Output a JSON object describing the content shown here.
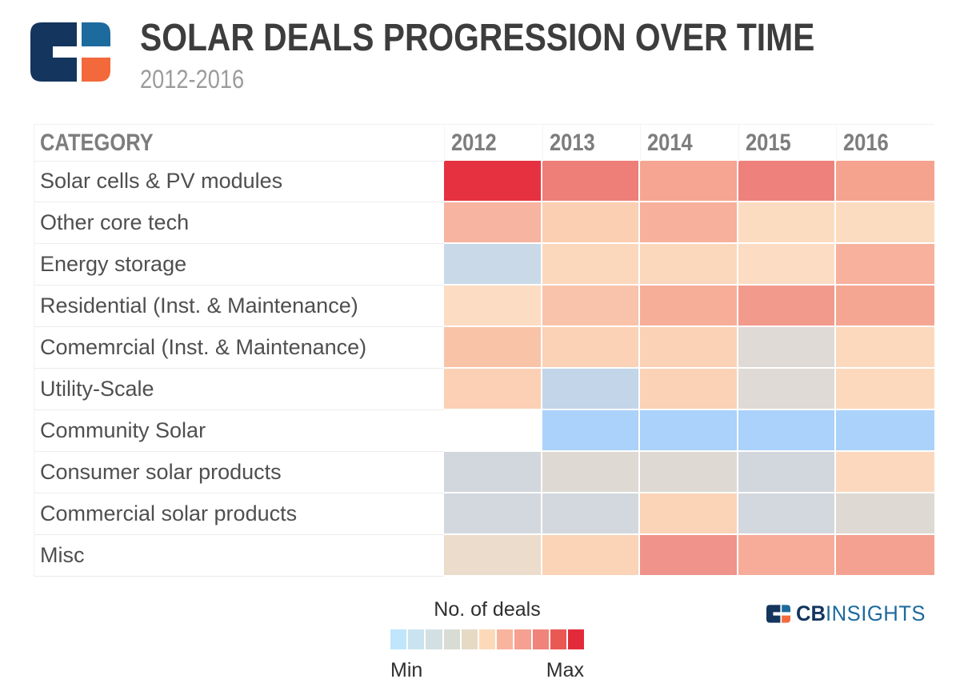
{
  "header": {
    "title": "SOLAR DEALS PROGRESSION OVER TIME",
    "subtitle": "2012-2016"
  },
  "branding": {
    "cb": "CB",
    "insights": "INSIGHTS",
    "logo_colors": {
      "navy": "#14355e",
      "blue": "#1d6a9e",
      "orange": "#f4693b"
    }
  },
  "chart_data": {
    "type": "heatmap",
    "title": "SOLAR DEALS PROGRESSION OVER TIME",
    "subtitle": "2012-2016",
    "column_header": "CATEGORY",
    "columns": [
      "2012",
      "2013",
      "2014",
      "2015",
      "2016"
    ],
    "rows": [
      "Solar cells & PV modules",
      "Other core tech",
      "Energy storage",
      "Residential (Inst. & Maintenance)",
      "Comemrcial (Inst. & Maintenance)",
      "Utility-Scale",
      "Community Solar",
      "Consumer solar products",
      "Commercial solar products",
      "Misc"
    ],
    "cell_colors": [
      [
        "#e63140",
        "#ee7e78",
        "#f5a592",
        "#ee817b",
        "#f5a38f"
      ],
      [
        "#f7b4a0",
        "#fbcfb2",
        "#f7b09c",
        "#fcdcc1",
        "#fcdcc1"
      ],
      [
        "#c9d9e8",
        "#fbd8bc",
        "#fbd8bc",
        "#fcdcc2",
        "#f7b19d"
      ],
      [
        "#fcdcc2",
        "#f9c3ab",
        "#f6ae99",
        "#f29a8b",
        "#f5a693"
      ],
      [
        "#f9c3a8",
        "#fbd2b6",
        "#fbd2b6",
        "#dfdad5",
        "#fcd9bd"
      ],
      [
        "#fbd0b4",
        "#c2d5e9",
        "#fbd2b5",
        "#dfdad5",
        "#fcd9bd"
      ],
      [
        "#ffffff",
        "#aad2fa",
        "#aad2fa",
        "#aad2fa",
        "#aad2fa"
      ],
      [
        "#d2d7dd",
        "#ded9d3",
        "#ded9d3",
        "#d2d7dd",
        "#fcd9be"
      ],
      [
        "#d3d8de",
        "#d3d8de",
        "#fbd3b7",
        "#d3d8de",
        "#ded9d2"
      ],
      [
        "#ecdccc",
        "#fbd3b6",
        "#f0938a",
        "#f6ac98",
        "#f4a191"
      ]
    ],
    "relative_intensity_0to10": {
      "note": "estimated from color scale, 0 = Min (blue) to 10 = Max (red); null = no data shown",
      "values": [
        [
          10,
          9,
          7,
          9,
          7
        ],
        [
          7,
          6,
          7,
          5,
          5
        ],
        [
          1,
          5,
          5,
          5,
          7
        ],
        [
          5,
          6,
          7,
          8,
          7
        ],
        [
          6,
          5,
          5,
          3,
          5
        ],
        [
          5,
          1,
          5,
          3,
          5
        ],
        [
          null,
          0,
          0,
          0,
          0
        ],
        [
          2,
          3,
          3,
          2,
          5
        ],
        [
          2,
          2,
          5,
          2,
          3
        ],
        [
          4,
          5,
          8,
          7,
          7
        ]
      ]
    },
    "scale": {
      "label": "No. of deals",
      "min_label": "Min",
      "max_label": "Max",
      "palette": [
        "#bfe6fc",
        "#c9e4f0",
        "#d3e0e3",
        "#d9dcd5",
        "#e6dac5",
        "#fcd9b9",
        "#f9b49e",
        "#f5a090",
        "#f0837a",
        "#e95853",
        "#e22b3a"
      ]
    },
    "legend_position": "bottom-center",
    "grid": false
  }
}
